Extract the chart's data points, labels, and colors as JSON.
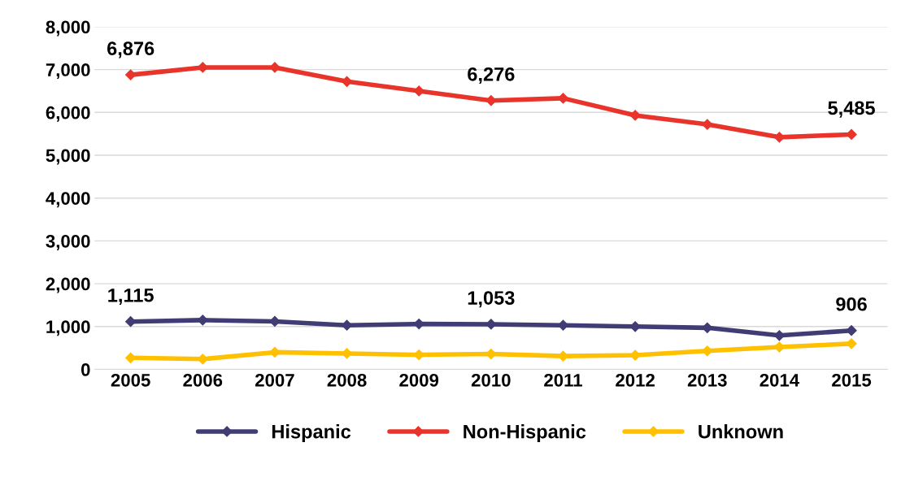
{
  "chart_data": {
    "type": "line",
    "categories": [
      "2005",
      "2006",
      "2007",
      "2008",
      "2009",
      "2010",
      "2011",
      "2012",
      "2013",
      "2014",
      "2015"
    ],
    "series": [
      {
        "name": "Hispanic",
        "color": "#403c74",
        "values": [
          1115,
          1150,
          1120,
          1030,
          1060,
          1053,
          1030,
          1000,
          970,
          790,
          906
        ],
        "value_labels": [
          "1,115",
          null,
          null,
          null,
          null,
          "1,053",
          null,
          null,
          null,
          null,
          "906"
        ]
      },
      {
        "name": "Non-Hispanic",
        "color": "#e8342a",
        "values": [
          6876,
          7050,
          7050,
          6720,
          6500,
          6276,
          6330,
          5930,
          5720,
          5420,
          5485
        ],
        "value_labels": [
          "6,876",
          null,
          null,
          null,
          null,
          "6,276",
          null,
          null,
          null,
          null,
          "5,485"
        ]
      },
      {
        "name": "Unknown",
        "color": "#ffc000",
        "values": [
          270,
          240,
          400,
          370,
          340,
          360,
          310,
          330,
          430,
          520,
          600
        ]
      }
    ],
    "ylim": [
      0,
      8000
    ],
    "yticks": [
      {
        "value": 0,
        "label": "0"
      },
      {
        "value": 1000,
        "label": "1,000"
      },
      {
        "value": 2000,
        "label": "2,000"
      },
      {
        "value": 3000,
        "label": "3,000"
      },
      {
        "value": 4000,
        "label": "4,000"
      },
      {
        "value": 5000,
        "label": "5,000"
      },
      {
        "value": 6000,
        "label": "6,000"
      },
      {
        "value": 7000,
        "label": "7,000"
      },
      {
        "value": 8000,
        "label": "8,000"
      }
    ],
    "grid": "y",
    "legend": "bottom",
    "marker": "diamond",
    "line_style": "solid"
  }
}
